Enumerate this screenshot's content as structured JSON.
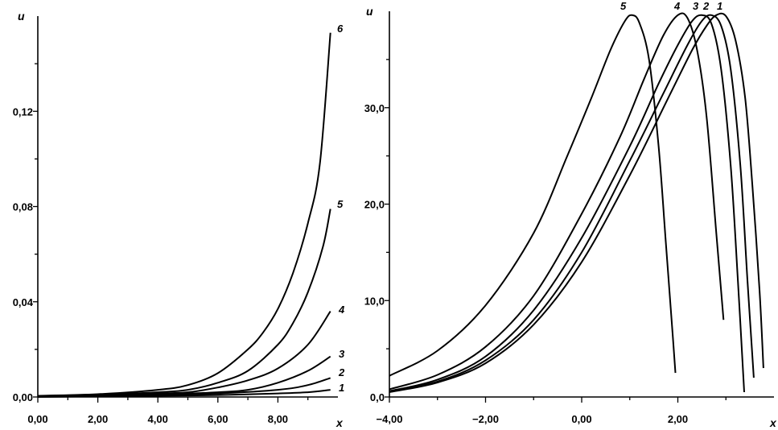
{
  "chart_data": [
    {
      "type": "line",
      "xlabel": "x",
      "ylabel": "u",
      "xlim": [
        0,
        10
      ],
      "ylim": [
        0,
        0.16
      ],
      "x_ticks": [
        0,
        2,
        4,
        6,
        8
      ],
      "x_tick_labels": [
        "0,00",
        "2,00",
        "4,00",
        "6,00",
        "8,00"
      ],
      "y_ticks": [
        0,
        0.04,
        0.08,
        0.12
      ],
      "y_tick_labels": [
        "0,00",
        "0,04",
        "0,08",
        "0,12"
      ],
      "series": [
        {
          "name": "1",
          "points": [
            [
              0,
              0
            ],
            [
              2,
              0.0003
            ],
            [
              4,
              0.0005
            ],
            [
              6,
              0.0008
            ],
            [
              8,
              0.0015
            ],
            [
              9,
              0.002
            ],
            [
              9.75,
              0.003
            ]
          ]
        },
        {
          "name": "2",
          "points": [
            [
              0,
              0.0002
            ],
            [
              2,
              0.0005
            ],
            [
              4,
              0.0008
            ],
            [
              6,
              0.0015
            ],
            [
              8,
              0.003
            ],
            [
              9,
              0.005
            ],
            [
              9.75,
              0.008
            ]
          ]
        },
        {
          "name": "3",
          "points": [
            [
              0,
              0.0003
            ],
            [
              2,
              0.0006
            ],
            [
              4,
              0.001
            ],
            [
              6,
              0.002
            ],
            [
              7,
              0.003
            ],
            [
              8,
              0.006
            ],
            [
              9,
              0.011
            ],
            [
              9.75,
              0.017
            ]
          ]
        },
        {
          "name": "4",
          "points": [
            [
              0,
              0.0004
            ],
            [
              2,
              0.0008
            ],
            [
              4,
              0.0015
            ],
            [
              5,
              0.002
            ],
            [
              6,
              0.004
            ],
            [
              7,
              0.007
            ],
            [
              8,
              0.012
            ],
            [
              9,
              0.022
            ],
            [
              9.75,
              0.036
            ]
          ]
        },
        {
          "name": "5",
          "points": [
            [
              0,
              0.0004
            ],
            [
              2,
              0.001
            ],
            [
              4,
              0.002
            ],
            [
              5,
              0.003
            ],
            [
              6,
              0.006
            ],
            [
              7,
              0.011
            ],
            [
              8,
              0.022
            ],
            [
              8.5,
              0.031
            ],
            [
              9,
              0.044
            ],
            [
              9.5,
              0.063
            ],
            [
              9.75,
              0.079
            ]
          ]
        },
        {
          "name": "6",
          "points": [
            [
              0,
              0.0005
            ],
            [
              2,
              0.0012
            ],
            [
              4,
              0.003
            ],
            [
              5,
              0.005
            ],
            [
              6,
              0.01
            ],
            [
              7,
              0.02
            ],
            [
              7.5,
              0.027
            ],
            [
              8,
              0.037
            ],
            [
              8.5,
              0.052
            ],
            [
              9,
              0.073
            ],
            [
              9.4,
              0.098
            ],
            [
              9.75,
              0.153
            ]
          ]
        }
      ]
    },
    {
      "type": "line",
      "xlabel": "x",
      "ylabel": "u",
      "xlim": [
        -4,
        4
      ],
      "ylim": [
        0,
        40
      ],
      "x_ticks": [
        -4,
        -2,
        0,
        2
      ],
      "x_tick_labels": [
        "−4,00",
        "−2,00",
        "0,00",
        "2,00"
      ],
      "y_ticks": [
        0,
        10,
        20,
        30
      ],
      "y_tick_labels": [
        "0,0",
        "10,0",
        "20,0",
        "30,0"
      ],
      "series": [
        {
          "name": "1",
          "points": [
            [
              -4,
              0.5
            ],
            [
              -3,
              1.5
            ],
            [
              -2,
              3.5
            ],
            [
              -1,
              7.5
            ],
            [
              0,
              14
            ],
            [
              1,
              23
            ],
            [
              1.8,
              31
            ],
            [
              2.3,
              36
            ],
            [
              2.6,
              38.5
            ],
            [
              2.8,
              39.6
            ],
            [
              3.0,
              39.5
            ],
            [
              3.2,
              37
            ],
            [
              3.4,
              31
            ],
            [
              3.55,
              22
            ],
            [
              3.7,
              11
            ],
            [
              3.78,
              3
            ]
          ]
        },
        {
          "name": "2",
          "points": [
            [
              -4,
              0.6
            ],
            [
              -3,
              1.6
            ],
            [
              -2,
              3.8
            ],
            [
              -1,
              8
            ],
            [
              0,
              15
            ],
            [
              1,
              24.5
            ],
            [
              1.7,
              31.5
            ],
            [
              2.2,
              36.5
            ],
            [
              2.5,
              39
            ],
            [
              2.7,
              39.6
            ],
            [
              2.9,
              38.5
            ],
            [
              3.1,
              34
            ],
            [
              3.3,
              24
            ],
            [
              3.45,
              12
            ],
            [
              3.58,
              2
            ]
          ]
        },
        {
          "name": "3",
          "points": [
            [
              -4,
              0.6
            ],
            [
              -3,
              1.8
            ],
            [
              -2,
              4.2
            ],
            [
              -1,
              9
            ],
            [
              0,
              16.5
            ],
            [
              1,
              26
            ],
            [
              1.6,
              32.5
            ],
            [
              2.0,
              36.5
            ],
            [
              2.3,
              39
            ],
            [
              2.5,
              39.6
            ],
            [
              2.7,
              38.7
            ],
            [
              2.9,
              34
            ],
            [
              3.1,
              24
            ],
            [
              3.25,
              12
            ],
            [
              3.38,
              0.5
            ]
          ]
        },
        {
          "name": "4",
          "points": [
            [
              -4,
              0.8
            ],
            [
              -3,
              2.3
            ],
            [
              -2,
              5.2
            ],
            [
              -1,
              10.5
            ],
            [
              0,
              19
            ],
            [
              0.8,
              27
            ],
            [
              1.3,
              33
            ],
            [
              1.7,
              37.5
            ],
            [
              2.0,
              39.6
            ],
            [
              2.2,
              39.3
            ],
            [
              2.4,
              36
            ],
            [
              2.6,
              29
            ],
            [
              2.8,
              17
            ],
            [
              2.95,
              8
            ]
          ]
        },
        {
          "name": "5",
          "points": [
            [
              -4,
              2.2
            ],
            [
              -3,
              4.8
            ],
            [
              -2,
              9.5
            ],
            [
              -1,
              17
            ],
            [
              -0.3,
              25
            ],
            [
              0.2,
              31
            ],
            [
              0.6,
              36
            ],
            [
              0.9,
              39
            ],
            [
              1.05,
              39.6
            ],
            [
              1.2,
              38.8
            ],
            [
              1.4,
              35
            ],
            [
              1.6,
              26
            ],
            [
              1.75,
              16
            ],
            [
              1.9,
              6
            ],
            [
              1.95,
              2.5
            ]
          ]
        }
      ]
    }
  ],
  "left_panel": {
    "axis_letter_y": "u",
    "axis_letter_x": "x",
    "curve_labels": [
      "1",
      "2",
      "3",
      "4",
      "5",
      "6"
    ]
  },
  "right_panel": {
    "axis_letter_y": "u",
    "axis_letter_x": "x",
    "curve_labels": [
      "5",
      "4",
      "3",
      "2",
      "1"
    ]
  }
}
